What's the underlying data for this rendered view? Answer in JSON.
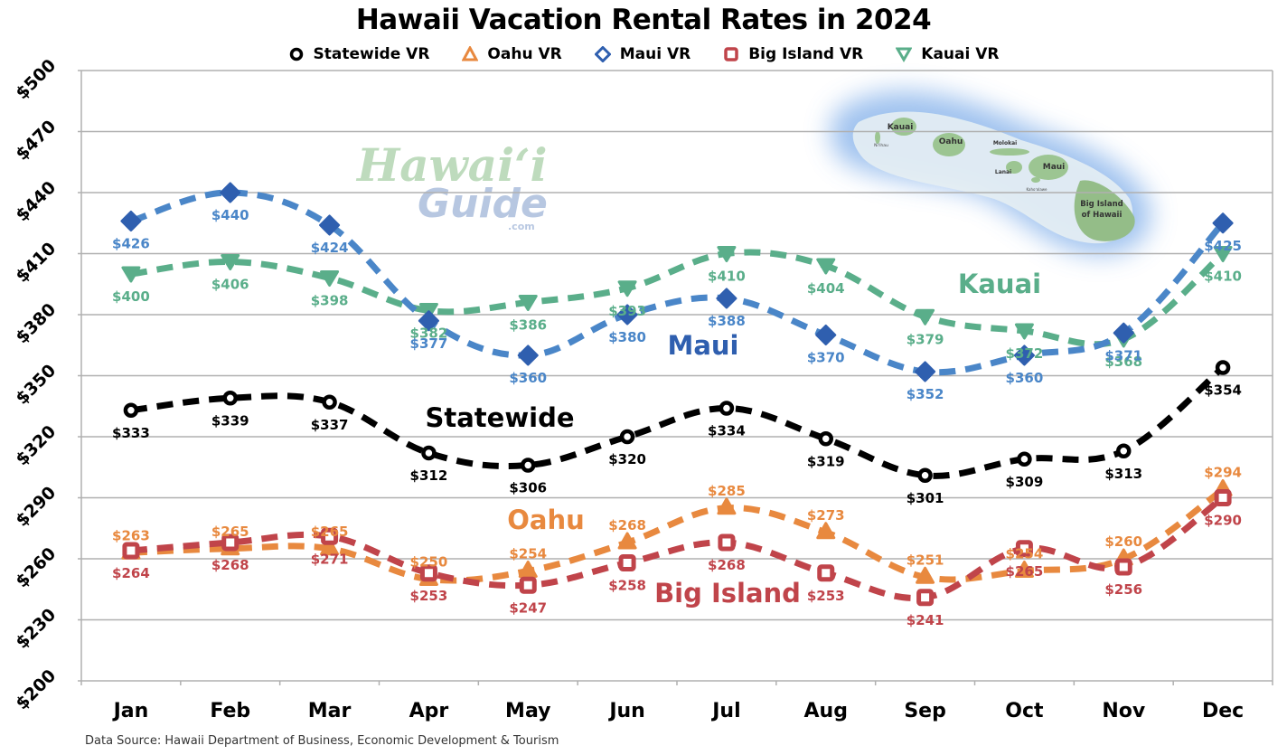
{
  "title": "Hawaii Vacation Rental Rates in 2024",
  "source": "Data Source: Hawaii Department of Business, Economic Development & Tourism",
  "legend": [
    {
      "label": "Statewide VR",
      "color": "#000000",
      "marker": "circle-icon"
    },
    {
      "label": "Oahu VR",
      "color": "#E8893F",
      "marker": "triangle-up-icon"
    },
    {
      "label": "Maui VR",
      "color": "#2F5FAF",
      "marker": "diamond-icon"
    },
    {
      "label": "Big Island VR",
      "color": "#C0444A",
      "marker": "square-icon"
    },
    {
      "label": "Kauai VR",
      "color": "#5AAE8A",
      "marker": "triangle-down-icon"
    }
  ],
  "annotations": {
    "maui": "Maui",
    "kauai": "Kauai",
    "statewide": "Statewide",
    "oahu": "Oahu",
    "big_island": "Big Island"
  },
  "watermark": {
    "line1": "Hawaiʻi",
    "line2": "Guide",
    "line3": ".com"
  },
  "map": {
    "labels": [
      "Kauai",
      "Niʻihau",
      "Oahu",
      "Molokai",
      "Lanai",
      "Maui",
      "Kahoʻolawe",
      "Big Island",
      "of Hawaii"
    ]
  },
  "chart_data": {
    "type": "line",
    "title": "Hawaii Vacation Rental Rates in 2024",
    "xlabel": "",
    "ylabel": "",
    "categories": [
      "Jan",
      "Feb",
      "Mar",
      "Apr",
      "May",
      "Jun",
      "Jul",
      "Aug",
      "Sep",
      "Oct",
      "Nov",
      "Dec"
    ],
    "y_ticks": [
      "$200",
      "$230",
      "$260",
      "$290",
      "$320",
      "$350",
      "$380",
      "$410",
      "$440",
      "$470",
      "$500"
    ],
    "ylim": [
      200,
      500
    ],
    "grid": true,
    "legend_position": "top",
    "series": [
      {
        "name": "Statewide VR",
        "color": "#000000",
        "line_color": "#000000",
        "label_color": "#000000",
        "label_pos": "below",
        "values": [
          333,
          339,
          337,
          312,
          306,
          320,
          334,
          319,
          301,
          309,
          313,
          354
        ]
      },
      {
        "name": "Oahu VR",
        "color": "#E8893F",
        "line_color": "#E8893F",
        "label_color": "#E8893F",
        "label_pos": "above",
        "values": [
          263,
          265,
          265,
          250,
          254,
          268,
          285,
          273,
          251,
          254,
          260,
          294
        ]
      },
      {
        "name": "Maui VR",
        "color": "#2F5FAF",
        "line_color": "#4A86C8",
        "label_color": "#4A86C8",
        "label_pos": "below",
        "values": [
          426,
          440,
          424,
          377,
          360,
          380,
          388,
          370,
          352,
          360,
          371,
          425
        ]
      },
      {
        "name": "Big Island VR",
        "color": "#C0444A",
        "line_color": "#C0444A",
        "label_color": "#C0444A",
        "label_pos": "below",
        "values": [
          264,
          268,
          271,
          253,
          247,
          258,
          268,
          253,
          241,
          265,
          256,
          290
        ]
      },
      {
        "name": "Kauai VR",
        "color": "#5AAE8A",
        "line_color": "#5AAE8A",
        "label_color": "#5AAE8A",
        "label_pos": "below",
        "values": [
          400,
          406,
          398,
          382,
          386,
          393,
          410,
          404,
          379,
          372,
          368,
          410
        ]
      }
    ]
  }
}
